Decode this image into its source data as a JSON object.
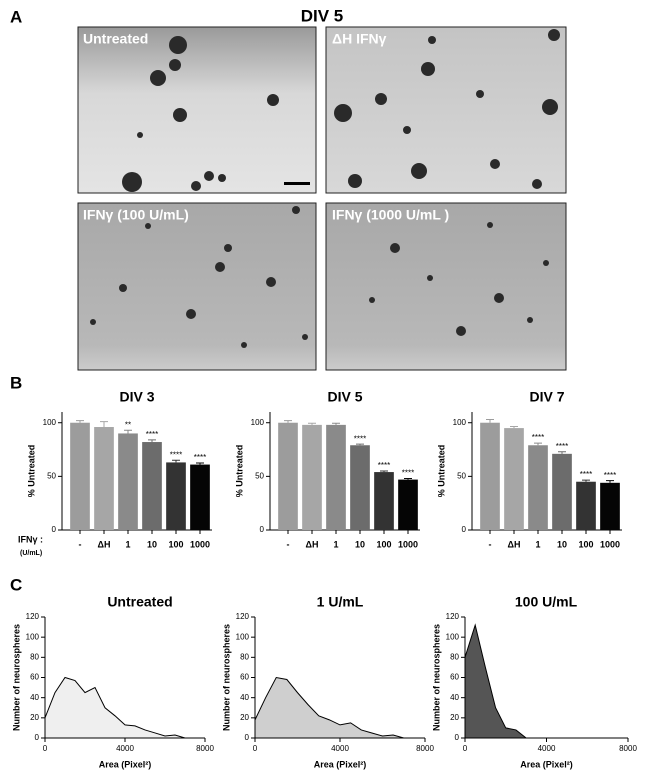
{
  "panel_labels": [
    "A",
    "B",
    "C"
  ],
  "micrographs": {
    "title": "DIV 5",
    "images": [
      "Untreated",
      "ΔH IFNγ",
      "IFNγ (100 U/mL)",
      "IFNγ (1000 U/mL )"
    ]
  },
  "dose_label": "IFNγ :",
  "dose_unit": "(U/mL)",
  "chart_data": [
    {
      "type": "bar",
      "title": "DIV 3",
      "ylabel": "% Untreated",
      "categories": [
        "-",
        "ΔH",
        "1",
        "10",
        "100",
        "1000"
      ],
      "values": [
        100,
        96,
        90,
        82,
        63,
        61
      ],
      "errors": [
        2,
        5,
        3,
        2,
        2,
        1.5
      ],
      "annotations": [
        null,
        null,
        "**",
        "****",
        "****",
        "****"
      ],
      "colors": [
        "#9c9c9c",
        "#a6a6a6",
        "#8a8a8a",
        "#6c6c6c",
        "#333333",
        "#050505"
      ],
      "ylim": [
        0,
        110
      ],
      "yticks": [
        0,
        50,
        100
      ]
    },
    {
      "type": "bar",
      "title": "DIV 5",
      "ylabel": "% Untreated",
      "categories": [
        "-",
        "ΔH",
        "1",
        "10",
        "100",
        "1000"
      ],
      "values": [
        100,
        98,
        98,
        79,
        54,
        47
      ],
      "errors": [
        2,
        1.5,
        1.5,
        1,
        1,
        1
      ],
      "annotations": [
        null,
        null,
        null,
        "****",
        "****",
        "****"
      ],
      "colors": [
        "#9c9c9c",
        "#a6a6a6",
        "#8a8a8a",
        "#6c6c6c",
        "#333333",
        "#050505"
      ],
      "ylim": [
        0,
        110
      ],
      "yticks": [
        0,
        50,
        100
      ]
    },
    {
      "type": "bar",
      "title": "DIV 7",
      "ylabel": "% Untreated",
      "categories": [
        "-",
        "ΔH",
        "1",
        "10",
        "100",
        "1000"
      ],
      "values": [
        100,
        95,
        79,
        71,
        45,
        44
      ],
      "errors": [
        3,
        1.5,
        2,
        2,
        1.5,
        2
      ],
      "annotations": [
        null,
        null,
        "****",
        "****",
        "****",
        "****"
      ],
      "colors": [
        "#9c9c9c",
        "#a6a6a6",
        "#8a8a8a",
        "#6c6c6c",
        "#333333",
        "#050505"
      ],
      "ylim": [
        0,
        110
      ],
      "yticks": [
        0,
        50,
        100
      ]
    },
    {
      "type": "area",
      "title": "Untreated",
      "xlabel": "Area (Pixel²)",
      "ylabel": "Number of neurospheres",
      "x": [
        0,
        500,
        1000,
        1500,
        2000,
        2500,
        3000,
        3500,
        4000,
        4500,
        5000,
        5500,
        6000,
        6500,
        7000,
        7500,
        8000
      ],
      "values": [
        20,
        45,
        60,
        57,
        45,
        50,
        30,
        22,
        13,
        12,
        8,
        5,
        2,
        3,
        0,
        0,
        0
      ],
      "color": "#efefef",
      "xlim": [
        0,
        8000
      ],
      "xticks": [
        0,
        4000,
        8000
      ],
      "ylim": [
        0,
        120
      ],
      "yticks": [
        0,
        20,
        40,
        60,
        80,
        100,
        120
      ]
    },
    {
      "type": "area",
      "title": "1 U/mL",
      "xlabel": "Area (Pixel²)",
      "ylabel": "Number of neurospheres",
      "x": [
        0,
        500,
        1000,
        1500,
        2000,
        2500,
        3000,
        3500,
        4000,
        4500,
        5000,
        5500,
        6000,
        6500,
        7000,
        7500,
        8000
      ],
      "values": [
        18,
        40,
        60,
        58,
        45,
        33,
        22,
        18,
        13,
        15,
        8,
        5,
        2,
        3,
        0,
        0,
        0
      ],
      "color": "#cfcfcf",
      "xlim": [
        0,
        8000
      ],
      "xticks": [
        0,
        4000,
        8000
      ],
      "ylim": [
        0,
        120
      ],
      "yticks": [
        0,
        20,
        40,
        60,
        80,
        100,
        120
      ]
    },
    {
      "type": "area",
      "title": "100 U/mL",
      "xlabel": "Area (Pixel²)",
      "ylabel": "Number of neurospheres",
      "x": [
        0,
        500,
        1000,
        1500,
        2000,
        2500,
        3000
      ],
      "values": [
        80,
        112,
        70,
        30,
        10,
        8,
        0
      ],
      "color": "#555555",
      "xlim": [
        0,
        8000
      ],
      "xticks": [
        0,
        4000,
        8000
      ],
      "ylim": [
        0,
        120
      ],
      "yticks": [
        0,
        20,
        40,
        60,
        80,
        100,
        120
      ]
    }
  ]
}
